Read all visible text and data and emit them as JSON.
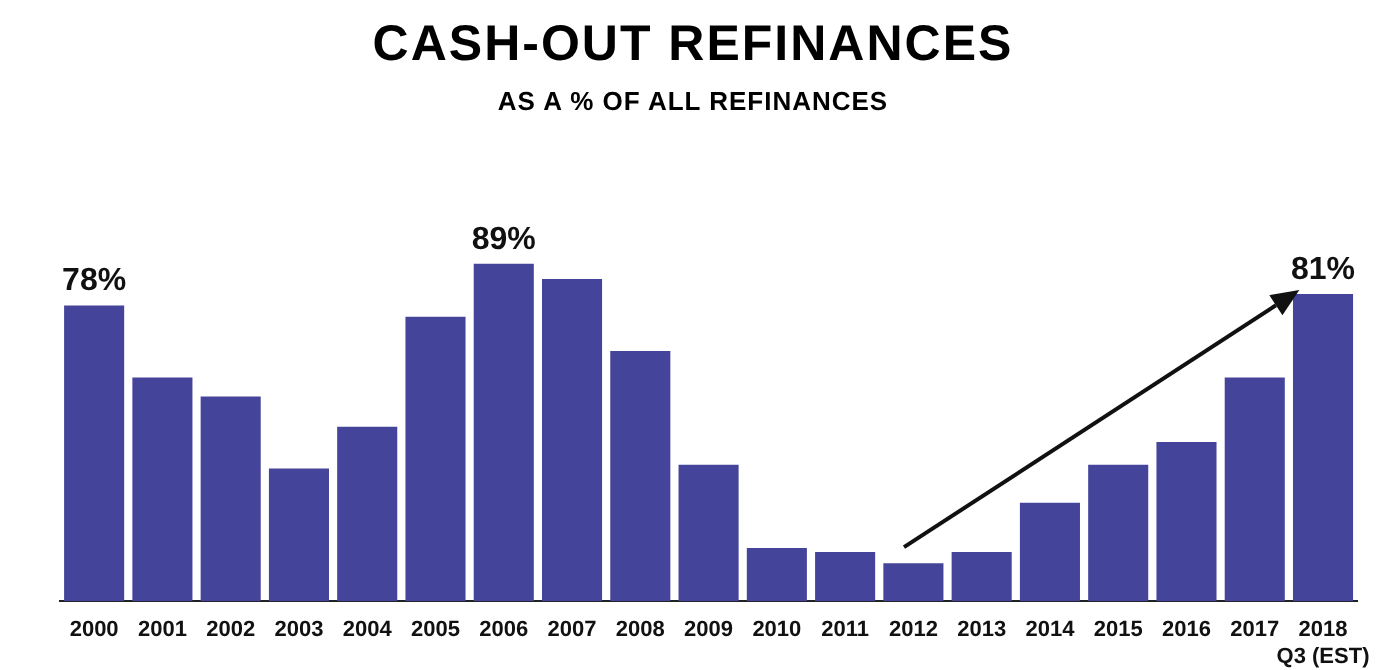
{
  "chart_data": {
    "type": "bar",
    "title": "CASH-OUT REFINANCES",
    "subtitle": "AS A % OF ALL REFINANCES",
    "categories": [
      "2000",
      "2001",
      "2002",
      "2003",
      "2004",
      "2005",
      "2006",
      "2007",
      "2008",
      "2009",
      "2010",
      "2011",
      "2012",
      "2013",
      "2014",
      "2015",
      "2016",
      "2017",
      "2018\nQ3 (EST)"
    ],
    "values": [
      78,
      59,
      54,
      35,
      46,
      75,
      89,
      85,
      66,
      36,
      14,
      13,
      10,
      13,
      26,
      36,
      42,
      59,
      81
    ],
    "value_labels": [
      "78%",
      null,
      null,
      null,
      null,
      null,
      "89%",
      null,
      null,
      null,
      null,
      null,
      null,
      null,
      null,
      null,
      null,
      null,
      "81%"
    ],
    "color": "#44449a",
    "grid": false,
    "legend": false
  }
}
